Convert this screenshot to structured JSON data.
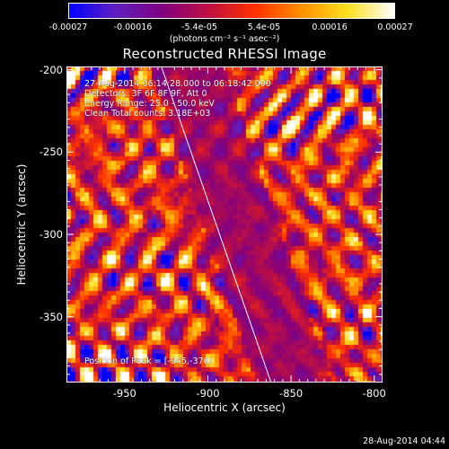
{
  "colorbar": {
    "ticks": [
      "-0.00027",
      "-0.00016",
      "-5.4e-05",
      "5.4e-05",
      "0.00016",
      "0.00027"
    ],
    "units": "(photons cm⁻² s⁻¹ asec⁻²)",
    "colors": [
      "#0000ff",
      "#6020c0",
      "#800080",
      "#c01040",
      "#ff3000",
      "#ff9000",
      "#ffe020",
      "#ffffff"
    ]
  },
  "title": "Reconstructed RHESSI Image",
  "info": {
    "line1": "27-Aug-2014 06:14:28.000 to 06:18:42.000",
    "line2": "Detectors: 3F 6F 8F 9F, Att 0",
    "line3": "Energy Range: 25.0 - 50.0 keV",
    "line4": "Clean    Total counts: 3.18E+03",
    "peak": "Position of Peak = [-945,-376]"
  },
  "timestamp": "28-Aug-2014 04:44",
  "chart_data": {
    "type": "heatmap",
    "title": "Reconstructed RHESSI Image",
    "xlabel": "Heliocentric X (arcsec)",
    "ylabel": "Heliocentric Y (arcsec)",
    "xlim": [
      -985,
      -795
    ],
    "ylim": [
      -390,
      -198
    ],
    "x_ticks": [
      "-950",
      "-900",
      "-850",
      "-800"
    ],
    "x_tick_values": [
      -950,
      -900,
      -850,
      -800
    ],
    "y_ticks": [
      "-200",
      "-250",
      "-300",
      "-350"
    ],
    "y_tick_values": [
      -200,
      -250,
      -300,
      -350
    ],
    "colorbar_range": [
      -0.00027,
      0.00027
    ],
    "limb_line": {
      "x": [
        -928,
        -862
      ],
      "y": [
        -198,
        -390
      ]
    },
    "peak_position": [
      -945,
      -376
    ]
  }
}
